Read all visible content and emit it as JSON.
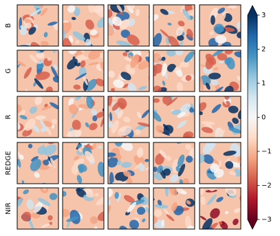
{
  "chart_data": {
    "type": "image-grid",
    "rows": [
      "B",
      "G",
      "R",
      "REDGE",
      "NIR"
    ],
    "colorbar": {
      "cmap": "RdBu",
      "extend": "both",
      "lim": [
        -3,
        3
      ],
      "ticks": [
        {
          "value": -3,
          "label": "−3"
        },
        {
          "value": -2,
          "label": "−2"
        },
        {
          "value": -1,
          "label": "−1"
        },
        0,
        1,
        2,
        3
      ]
    }
  }
}
